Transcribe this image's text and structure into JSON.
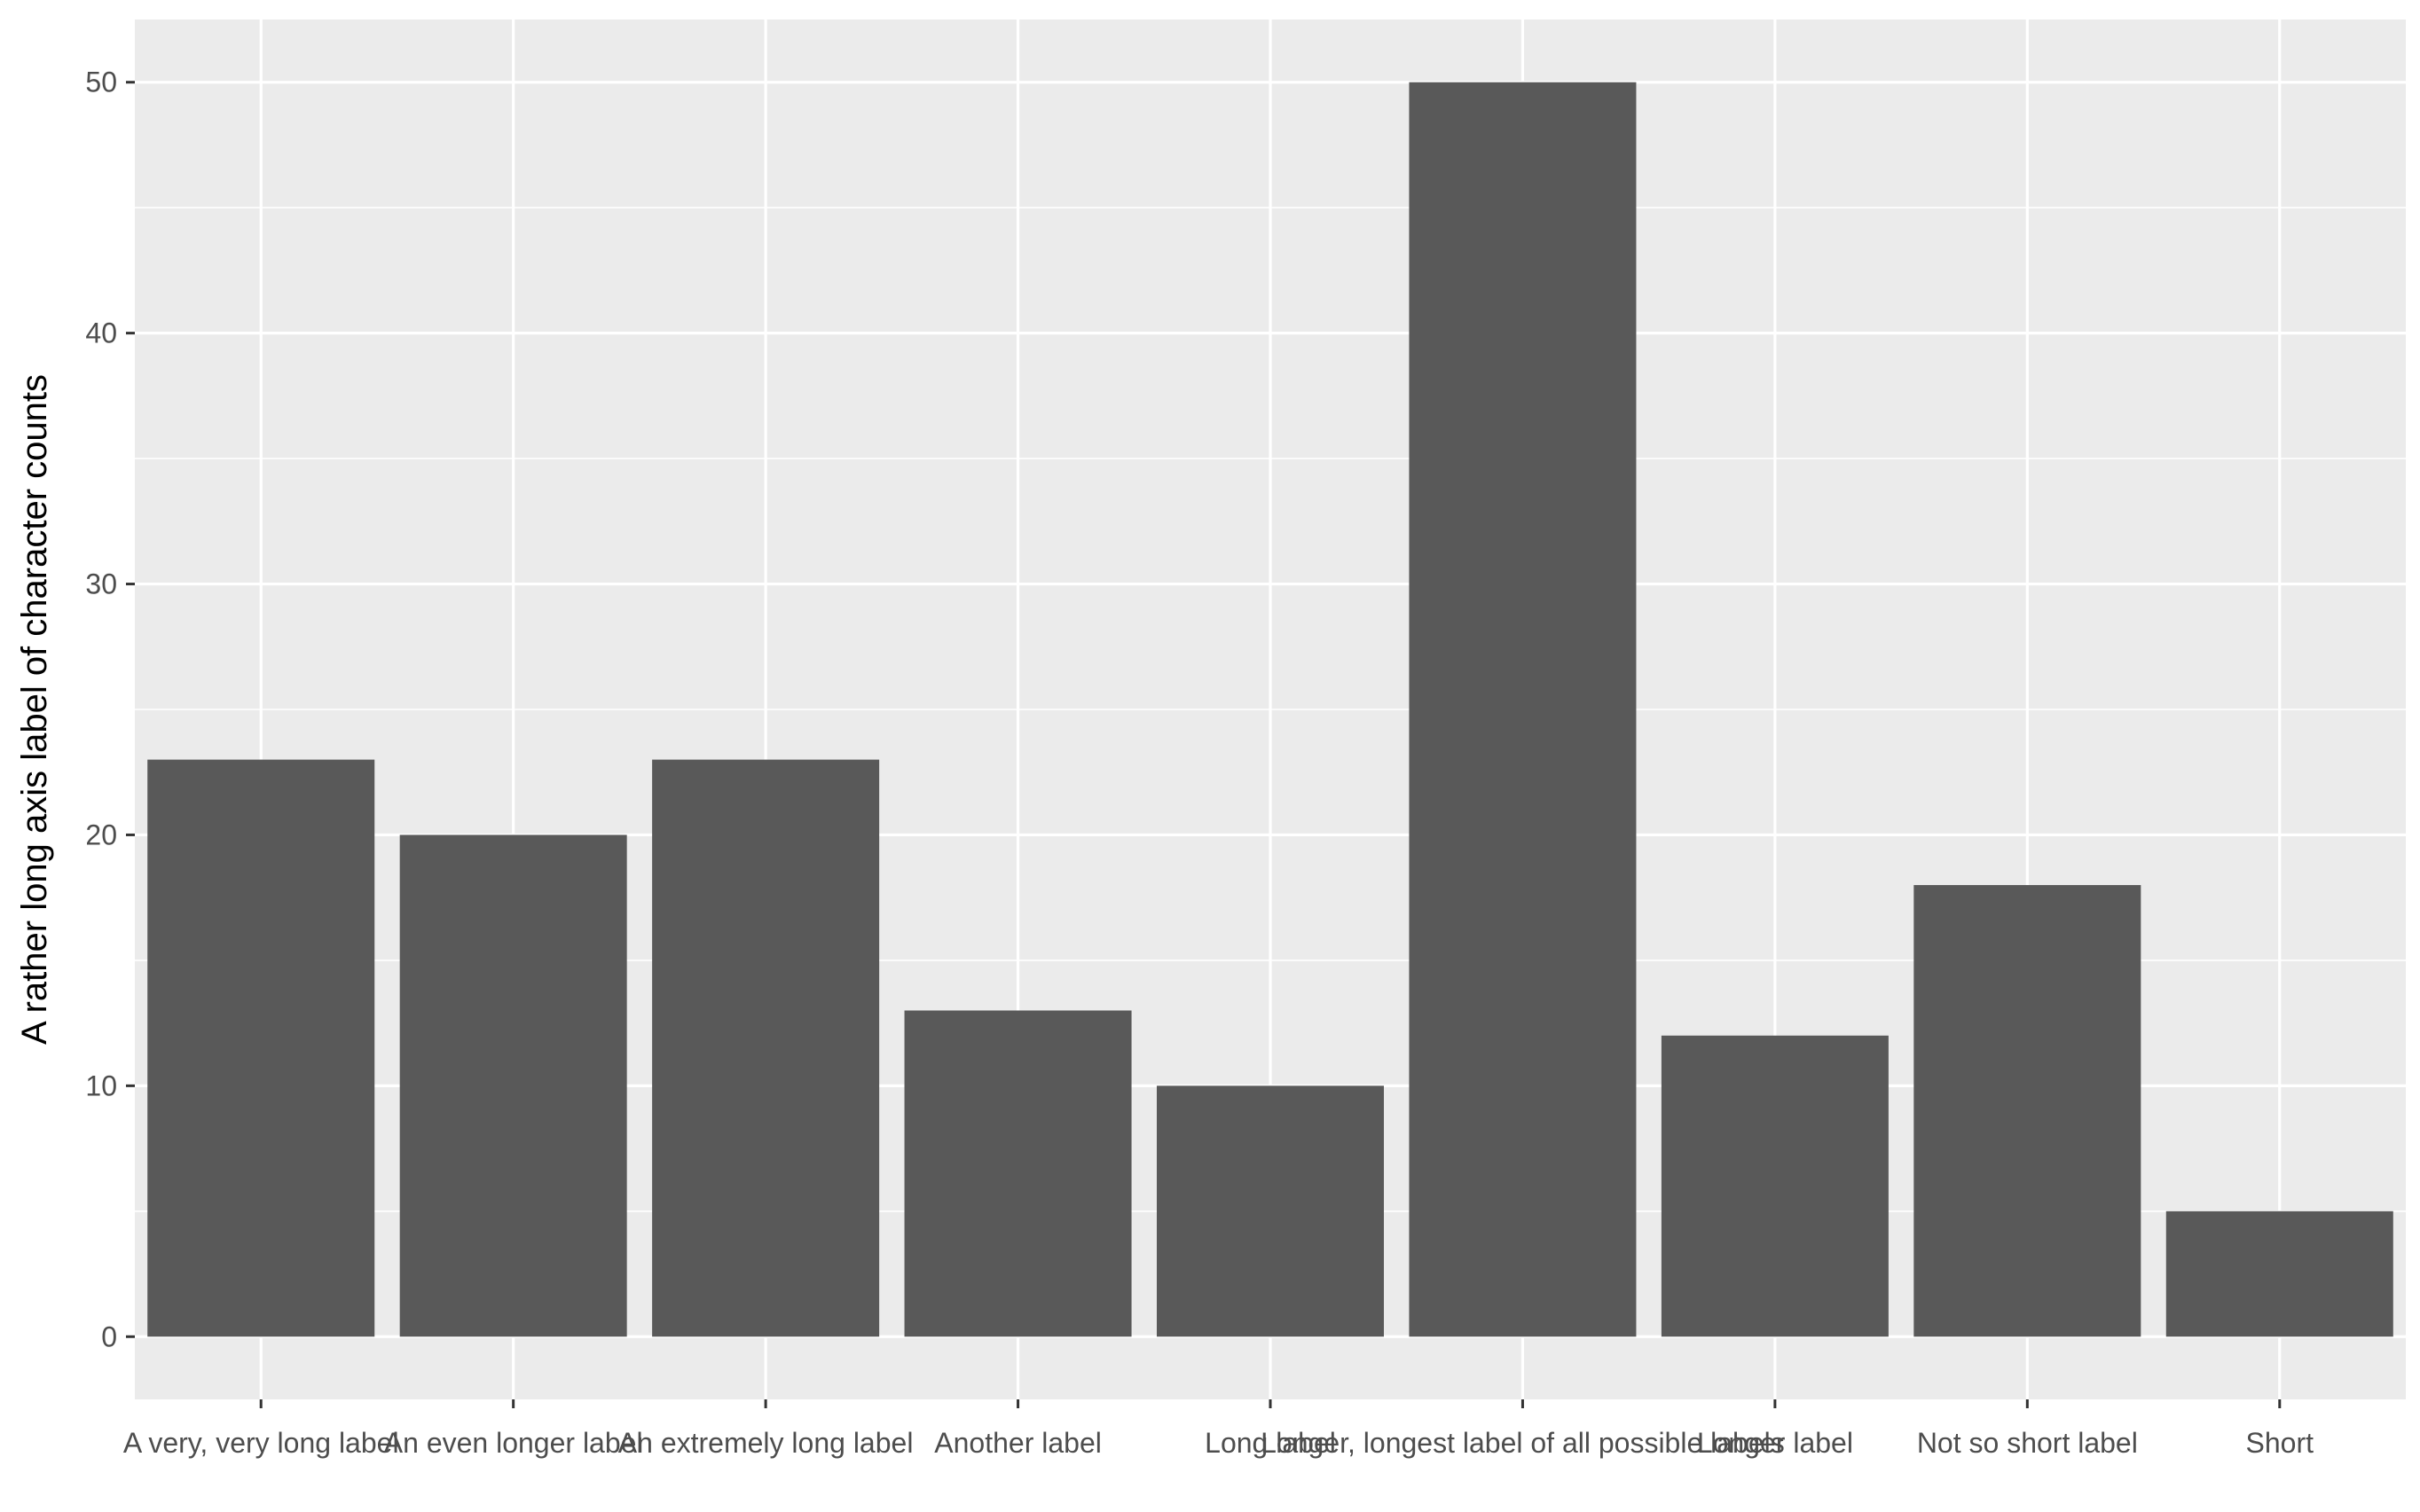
{
  "chart_data": {
    "type": "bar",
    "title": "",
    "xlabel": "",
    "ylabel": "A rather long axis label of character counts",
    "categories": [
      "A very, very long label",
      "An even longer label",
      "An extremely long label",
      "Another label",
      "Long label",
      "Longer, longest label of all possible labels",
      "Longer label",
      "Not so short label",
      "Short"
    ],
    "values": [
      23,
      20,
      23,
      13,
      10,
      50,
      12,
      18,
      5
    ],
    "ylim": [
      -2.5,
      52.5
    ],
    "yticks": [
      0,
      10,
      20,
      30,
      40,
      50
    ],
    "grid": true,
    "legend": "none",
    "colors": {
      "panel": "#EBEBEB",
      "grid": "#FFFFFF",
      "bar": "#595959",
      "tick_text": "#4D4D4D",
      "tick_mark": "#333333"
    }
  }
}
